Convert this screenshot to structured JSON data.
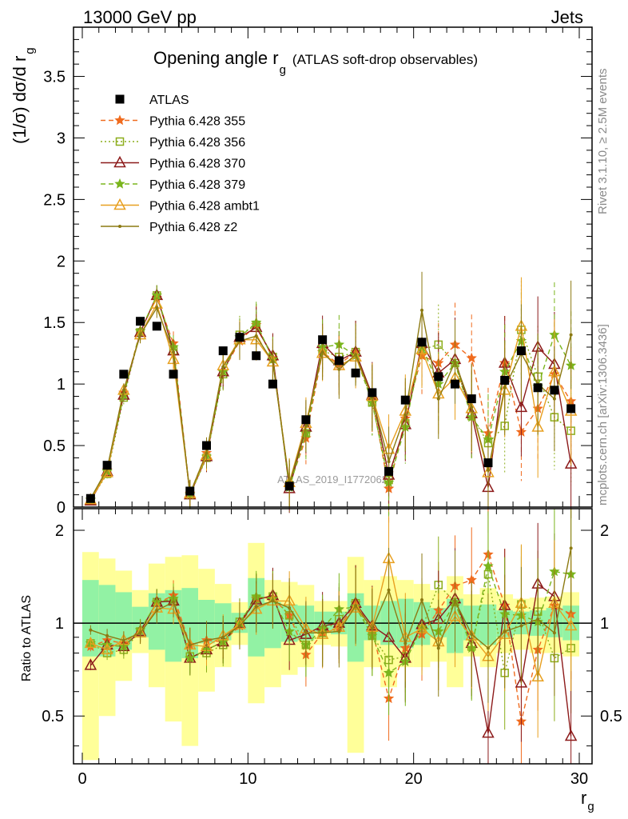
{
  "header": {
    "left": "13000 GeV pp",
    "right": "Jets"
  },
  "title": {
    "main": "Opening angle r",
    "sub": "g",
    "extra": "(ATLAS soft-drop observables)"
  },
  "ylabel": {
    "main": "(1/σ) dσ/d r",
    "sub": "g"
  },
  "xlabel": {
    "main": "r",
    "sub": "g"
  },
  "ratio_ylabel": "Ratio to ATLAS",
  "watermark": "ATLAS_2019_I1772062",
  "side_text_1": "Rivet 3.1.10, ≥ 2.5M events",
  "side_text_2": "mcplots.cern.ch [arXiv:1306.3436]",
  "chart_data": [
    {
      "type": "scatter",
      "xlim": [
        0,
        30
      ],
      "ylim": [
        0,
        3.9
      ],
      "yticks": [
        0,
        0.5,
        1,
        1.5,
        2,
        2.5,
        3,
        3.5
      ],
      "ytick_labels": [
        "0",
        "0.5",
        "1",
        "1.5",
        "2",
        "2.5",
        "3",
        "3.5"
      ],
      "legend_position": "top-left",
      "x": [
        0.5,
        1.5,
        2.5,
        3.5,
        4.5,
        5.5,
        6.5,
        7.5,
        8.5,
        9.5,
        10.5,
        11.5,
        12.5,
        13.5,
        14.5,
        15.5,
        16.5,
        17.5,
        18.5,
        19.5,
        20.5,
        21.5,
        22.5,
        23.5,
        24.5,
        25.5,
        26.5,
        27.5,
        28.5,
        29.5
      ],
      "data": {
        "name": "ATLAS",
        "color": "#000000",
        "values": [
          0.07,
          0.34,
          1.08,
          1.51,
          1.47,
          1.08,
          0.13,
          0.5,
          1.27,
          1.38,
          1.23,
          1.0,
          0.17,
          0.71,
          1.36,
          1.19,
          1.09,
          0.93,
          0.29,
          0.87,
          1.34,
          1.06,
          1.0,
          0.88,
          0.36,
          1.03,
          1.27,
          0.97,
          0.95,
          0.8
        ]
      },
      "series": [
        {
          "name": "Pythia 6.428 355",
          "color": "#f06b1e",
          "marker": "star",
          "dash": "6,4",
          "values": [
            0.06,
            0.3,
            0.93,
            1.43,
            1.7,
            1.33,
            0.11,
            0.44,
            1.1,
            1.35,
            1.48,
            1.21,
            0.18,
            0.56,
            1.26,
            1.16,
            1.26,
            0.88,
            0.15,
            0.72,
            1.23,
            1.17,
            1.32,
            1.21,
            0.6,
            1.17,
            0.61,
            0.8,
            1.08,
            0.86
          ]
        },
        {
          "name": "Pythia 6.428 356",
          "color": "#8cad1a",
          "marker": "opensquare",
          "dash": "2,3",
          "values": [
            0.06,
            0.27,
            0.89,
            1.42,
            1.72,
            1.27,
            0.1,
            0.4,
            1.08,
            1.4,
            1.48,
            1.22,
            0.18,
            0.6,
            1.27,
            1.22,
            1.26,
            0.85,
            0.22,
            0.68,
            1.28,
            1.32,
            1.17,
            0.74,
            0.52,
            0.66,
            1.44,
            1.06,
            0.73,
            0.62
          ]
        },
        {
          "name": "Pythia 6.428 370",
          "color": "#8c1a1a",
          "marker": "opentriangle",
          "dash": "",
          "values": [
            0.05,
            0.29,
            0.91,
            1.42,
            1.72,
            1.27,
            0.1,
            0.41,
            1.1,
            1.38,
            1.46,
            1.23,
            0.15,
            0.65,
            1.33,
            1.19,
            1.26,
            0.91,
            0.26,
            0.67,
            1.33,
            1.09,
            1.2,
            0.76,
            0.16,
            1.17,
            0.81,
            1.3,
            1.16,
            0.35
          ]
        },
        {
          "name": "Pythia 6.428 379",
          "color": "#7ab51d",
          "marker": "star",
          "dash": "6,4",
          "values": [
            0.06,
            0.29,
            0.91,
            1.43,
            1.72,
            1.3,
            0.1,
            0.41,
            1.1,
            1.38,
            1.5,
            1.2,
            0.16,
            0.6,
            1.3,
            1.32,
            1.23,
            0.85,
            0.2,
            0.65,
            1.3,
            1.0,
            1.17,
            0.73,
            0.55,
            1.1,
            1.35,
            0.98,
            1.4,
            1.15
          ]
        },
        {
          "name": "Pythia 6.428 ambt1",
          "color": "#e8a020",
          "marker": "opentriangle",
          "dash": "",
          "values": [
            0.06,
            0.28,
            0.95,
            1.4,
            1.65,
            1.2,
            0.11,
            0.42,
            1.15,
            1.36,
            1.36,
            1.18,
            0.2,
            0.68,
            1.25,
            1.15,
            1.22,
            0.9,
            0.47,
            0.78,
            1.28,
            0.92,
            1.05,
            0.8,
            0.28,
            0.95,
            1.47,
            0.65,
            1.1,
            0.78
          ]
        },
        {
          "name": "Pythia 6.428 z2",
          "color": "#8c7a12",
          "marker": "dot",
          "dash": "",
          "values": [
            0.07,
            0.31,
            0.95,
            1.4,
            1.62,
            1.26,
            0.11,
            0.44,
            1.14,
            1.35,
            1.39,
            1.18,
            0.19,
            0.66,
            1.26,
            1.12,
            1.24,
            0.89,
            0.37,
            0.75,
            1.6,
            0.88,
            1.18,
            0.81,
            0.3,
            0.97,
            1.25,
            1.0,
            0.88,
            1.4
          ]
        }
      ]
    },
    {
      "type": "scatter",
      "xlim": [
        0,
        30
      ],
      "ylim": [
        0.35,
        2.35
      ],
      "log_y": true,
      "yticks": [
        0.5,
        1,
        2
      ],
      "ytick_labels": [
        "0.5",
        "1",
        "2"
      ],
      "xticks": [
        0,
        10,
        20,
        30
      ],
      "xtick_labels": [
        "0",
        "10",
        "20",
        "30"
      ],
      "reference_line": 1,
      "band_1sigma": [
        [
          0.78,
          1.38
        ],
        [
          0.78,
          1.33
        ],
        [
          0.82,
          1.26
        ],
        [
          0.9,
          1.13
        ],
        [
          0.82,
          1.25
        ],
        [
          0.75,
          1.28
        ],
        [
          0.77,
          1.3
        ],
        [
          0.86,
          1.19
        ],
        [
          0.88,
          1.16
        ],
        [
          0.93,
          1.08
        ],
        [
          0.78,
          1.4
        ],
        [
          0.83,
          1.17
        ],
        [
          0.87,
          1.15
        ],
        [
          0.88,
          1.14
        ],
        [
          0.93,
          1.09
        ],
        [
          0.92,
          1.09
        ],
        [
          0.75,
          1.25
        ],
        [
          0.88,
          1.14
        ],
        [
          0.85,
          1.18
        ],
        [
          0.83,
          1.2
        ],
        [
          0.85,
          1.17
        ],
        [
          0.9,
          1.12
        ],
        [
          0.8,
          1.2
        ],
        [
          0.88,
          1.14
        ],
        [
          0.85,
          1.15
        ],
        [
          0.9,
          1.1
        ],
        [
          0.92,
          1.09
        ],
        [
          0.91,
          1.1
        ],
        [
          0.9,
          1.12
        ],
        [
          0.88,
          1.14
        ]
      ],
      "band_2sigma": [
        [
          0.36,
          1.7
        ],
        [
          0.5,
          1.62
        ],
        [
          0.65,
          1.48
        ],
        [
          0.8,
          1.28
        ],
        [
          0.62,
          1.56
        ],
        [
          0.48,
          1.64
        ],
        [
          0.4,
          1.66
        ],
        [
          0.6,
          1.5
        ],
        [
          0.72,
          1.34
        ],
        [
          0.85,
          1.17
        ],
        [
          0.55,
          1.82
        ],
        [
          0.62,
          1.38
        ],
        [
          0.68,
          1.36
        ],
        [
          0.72,
          1.33
        ],
        [
          0.85,
          1.18
        ],
        [
          0.84,
          1.18
        ],
        [
          0.38,
          1.64
        ],
        [
          0.72,
          1.38
        ],
        [
          0.62,
          1.42
        ],
        [
          0.72,
          1.38
        ],
        [
          0.72,
          1.34
        ],
        [
          0.75,
          1.28
        ],
        [
          0.62,
          1.42
        ],
        [
          0.78,
          1.24
        ],
        [
          0.72,
          1.3
        ],
        [
          0.8,
          1.24
        ],
        [
          0.82,
          1.2
        ],
        [
          0.8,
          1.21
        ],
        [
          0.8,
          1.22
        ],
        [
          0.78,
          1.26
        ]
      ],
      "series": [
        {
          "name": "Pythia 6.428 355",
          "values": [
            0.84,
            0.88,
            0.86,
            0.95,
            1.16,
            1.23,
            0.85,
            0.88,
            0.87,
            0.98,
            1.2,
            1.21,
            1.06,
            0.79,
            0.93,
            0.97,
            1.16,
            0.95,
            0.57,
            0.83,
            0.92,
            1.1,
            1.32,
            1.38,
            1.67,
            1.14,
            0.48,
            0.82,
            1.14,
            1.07
          ]
        },
        {
          "name": "Pythia 6.428 356",
          "values": [
            0.86,
            0.8,
            0.82,
            0.94,
            1.17,
            1.18,
            0.78,
            0.8,
            0.85,
            1.01,
            1.2,
            1.22,
            1.06,
            0.85,
            0.93,
            1.03,
            1.16,
            0.91,
            0.76,
            0.78,
            0.96,
            1.33,
            1.17,
            0.84,
            1.44,
            0.69,
            1.15,
            1.09,
            0.77,
            0.83
          ]
        },
        {
          "name": "Pythia 6.428 370",
          "values": [
            0.73,
            0.85,
            0.84,
            0.94,
            1.17,
            1.18,
            0.77,
            0.82,
            0.87,
            1.0,
            1.19,
            1.23,
            0.88,
            0.92,
            0.98,
            1.0,
            1.16,
            0.98,
            0.9,
            0.77,
            0.99,
            1.03,
            1.2,
            0.86,
            0.44,
            1.14,
            0.64,
            1.34,
            1.22,
            0.43
          ]
        },
        {
          "name": "Pythia 6.428 379",
          "values": [
            0.86,
            0.85,
            0.84,
            0.95,
            1.17,
            1.2,
            0.77,
            0.82,
            0.87,
            1.0,
            1.22,
            1.2,
            0.94,
            0.85,
            0.96,
            1.11,
            1.13,
            0.91,
            0.69,
            0.75,
            0.97,
            0.94,
            1.17,
            0.83,
            1.53,
            1.07,
            1.06,
            1.01,
            1.47,
            1.44
          ]
        },
        {
          "name": "Pythia 6.428 ambt1",
          "values": [
            0.86,
            0.82,
            0.88,
            0.93,
            1.12,
            1.11,
            0.85,
            0.84,
            0.91,
            0.99,
            1.11,
            1.18,
            1.18,
            0.96,
            0.92,
            0.97,
            1.12,
            0.97,
            1.62,
            0.9,
            0.96,
            0.87,
            1.05,
            0.91,
            0.78,
            0.92,
            1.16,
            0.67,
            1.16,
            0.98
          ]
        },
        {
          "name": "Pythia 6.428 z2",
          "values": [
            0.95,
            0.91,
            0.88,
            0.93,
            1.1,
            1.17,
            0.85,
            0.88,
            0.9,
            0.98,
            1.13,
            1.18,
            1.12,
            0.93,
            0.93,
            0.94,
            1.14,
            0.96,
            1.28,
            0.86,
            1.19,
            0.83,
            1.18,
            0.92,
            0.83,
            0.94,
            0.98,
            1.03,
            0.93,
            1.75
          ]
        }
      ]
    }
  ]
}
